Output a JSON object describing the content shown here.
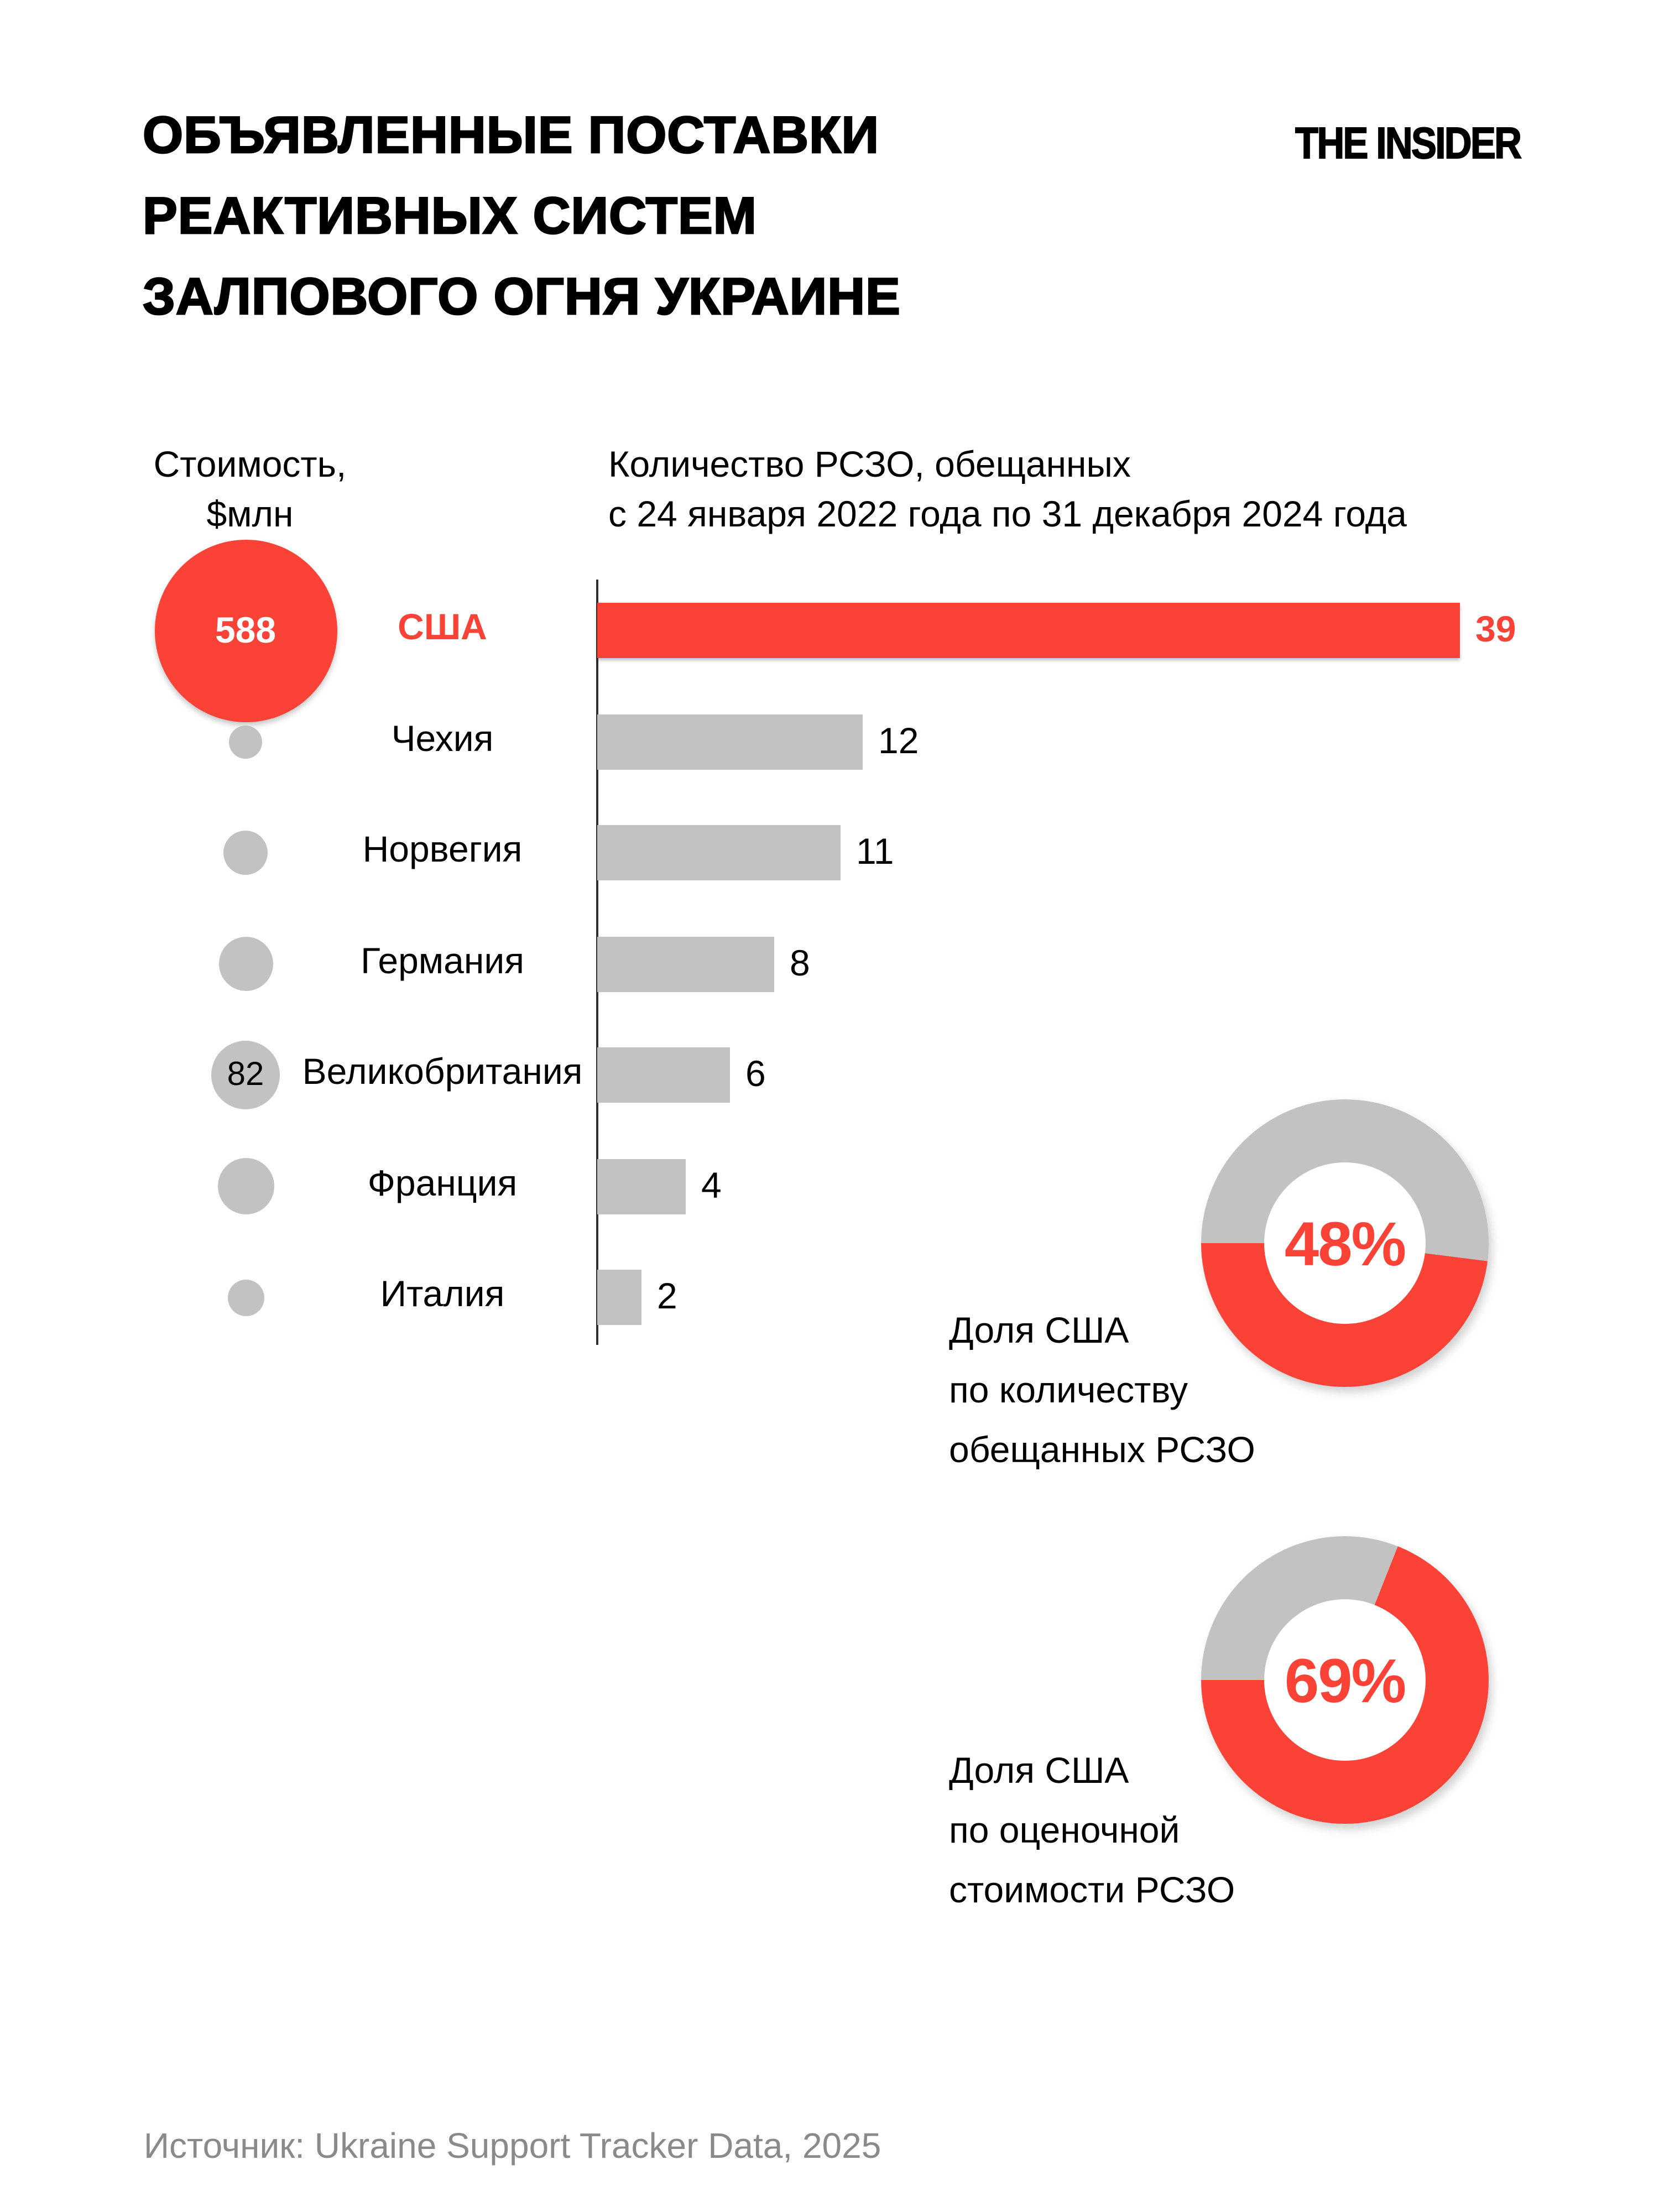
{
  "header": {
    "title_lines": [
      "ОБЪЯВЛЕННЫЕ ПОСТАВКИ",
      "РЕАКТИВНЫХ СИСТЕМ",
      "ЗАЛПОВОГО ОГНЯ УКРАИНЕ"
    ],
    "logo": "THE INSIDER"
  },
  "column_headers": {
    "cost_lines": [
      "Стоимость,",
      "$млн"
    ],
    "quantity_lines": [
      "Количество РСЗО, обещанных",
      "с 24 января 2022 года по 31 декабря 2024 года"
    ]
  },
  "colors": {
    "accent_red": "#FB4237",
    "neutral_gray": "#C2C2C2",
    "axis": "#2E2E2E",
    "source_gray": "#8A8A8A"
  },
  "chart_data": {
    "type": "bar",
    "orientation": "horizontal",
    "title": "Объявленные поставки реактивных систем залпового огня Украине",
    "categories": [
      "США",
      "Чехия",
      "Норвегия",
      "Германия",
      "Великобритания",
      "Франция",
      "Италия"
    ],
    "series": [
      {
        "name": "Количество РСЗО, обещанных с 24 января 2022 года по 31 декабря 2024 года",
        "values": [
          39,
          12,
          11,
          8,
          6,
          4,
          2
        ]
      },
      {
        "name": "Стоимость, $млн (размер круга; подписаны только видимые значения)",
        "values": [
          588,
          null,
          null,
          null,
          82,
          null,
          null
        ]
      }
    ],
    "highlight_category": "США",
    "xlim": [
      0,
      40
    ],
    "grid": false,
    "value_labels": true,
    "donuts": [
      {
        "value_pct": 48,
        "label": "Доля США по количеству обещанных РСЗО"
      },
      {
        "value_pct": 69,
        "label": "Доля США по оценочной стоимости РСЗО"
      }
    ]
  },
  "rows": [
    {
      "country": "США",
      "qty": "39",
      "cost_label": "588",
      "bubble_r": 82.5,
      "highlight": true
    },
    {
      "country": "Чехия",
      "qty": "12",
      "cost_label": "",
      "bubble_r": 15,
      "highlight": false
    },
    {
      "country": "Норвегия",
      "qty": "11",
      "cost_label": "",
      "bubble_r": 20,
      "highlight": false
    },
    {
      "country": "Германия",
      "qty": "8",
      "cost_label": "",
      "bubble_r": 24.5,
      "highlight": false
    },
    {
      "country": "Великобритания",
      "qty": "6",
      "cost_label": "82",
      "bubble_r": 31,
      "highlight": false
    },
    {
      "country": "Франция",
      "qty": "4",
      "cost_label": "",
      "bubble_r": 25.5,
      "highlight": false
    },
    {
      "country": "Италия",
      "qty": "2",
      "cost_label": "",
      "bubble_r": 16.5,
      "highlight": false
    }
  ],
  "donut_charts": [
    {
      "pct_label": "48%",
      "value": 48,
      "label_lines": [
        "Доля США",
        "по количеству",
        "обещанных РСЗО"
      ]
    },
    {
      "pct_label": "69%",
      "value": 69,
      "label_lines": [
        "Доля США",
        "по оценочной",
        "стоимости РСЗО"
      ]
    }
  ],
  "source": "Источник: Ukraine Support Tracker Data, 2025"
}
